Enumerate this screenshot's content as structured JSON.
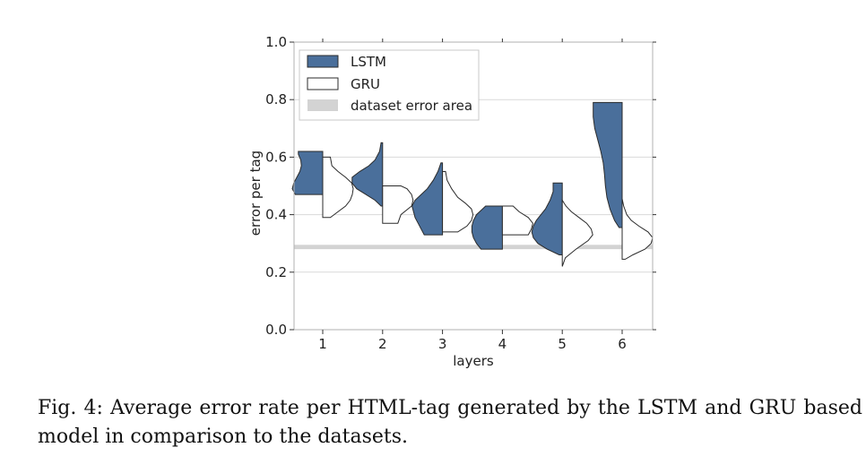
{
  "chart_data": {
    "type": "violin",
    "xlabel": "layers",
    "ylabel": "error per tag",
    "ylim": [
      0.0,
      1.0
    ],
    "yticks": [
      "0.0",
      "0.2",
      "0.4",
      "0.6",
      "0.8",
      "1.0"
    ],
    "categories": [
      "1",
      "2",
      "3",
      "4",
      "5",
      "6"
    ],
    "grid": "horizontal",
    "legend_position": "top-left",
    "reference_band": {
      "name": "dataset error area",
      "range": [
        0.28,
        0.295
      ],
      "color": "#d3d3d3"
    },
    "series": [
      {
        "name": "LSTM",
        "side": "left",
        "color": "#4a6f9b",
        "violins": [
          {
            "min": 0.47,
            "max": 0.62,
            "profile": [
              [
                0.47,
                0.9
              ],
              [
                0.49,
                1.0
              ],
              [
                0.51,
                0.95
              ],
              [
                0.53,
                0.85
              ],
              [
                0.55,
                0.75
              ],
              [
                0.57,
                0.7
              ],
              [
                0.59,
                0.72
              ],
              [
                0.61,
                0.8
              ],
              [
                0.62,
                0.8
              ]
            ]
          },
          {
            "min": 0.43,
            "max": 0.65,
            "profile": [
              [
                0.43,
                0.05
              ],
              [
                0.45,
                0.25
              ],
              [
                0.47,
                0.55
              ],
              [
                0.49,
                0.85
              ],
              [
                0.51,
                1.0
              ],
              [
                0.53,
                1.0
              ],
              [
                0.55,
                0.75
              ],
              [
                0.57,
                0.45
              ],
              [
                0.59,
                0.25
              ],
              [
                0.62,
                0.1
              ],
              [
                0.65,
                0.05
              ]
            ]
          },
          {
            "min": 0.33,
            "max": 0.58,
            "profile": [
              [
                0.33,
                0.6
              ],
              [
                0.35,
                0.7
              ],
              [
                0.37,
                0.8
              ],
              [
                0.39,
                0.9
              ],
              [
                0.41,
                0.95
              ],
              [
                0.43,
                1.0
              ],
              [
                0.45,
                0.9
              ],
              [
                0.47,
                0.7
              ],
              [
                0.49,
                0.5
              ],
              [
                0.52,
                0.3
              ],
              [
                0.55,
                0.15
              ],
              [
                0.58,
                0.05
              ]
            ]
          },
          {
            "min": 0.28,
            "max": 0.43,
            "profile": [
              [
                0.28,
                0.7
              ],
              [
                0.3,
                0.85
              ],
              [
                0.32,
                0.95
              ],
              [
                0.34,
                1.0
              ],
              [
                0.36,
                1.0
              ],
              [
                0.38,
                0.95
              ],
              [
                0.4,
                0.85
              ],
              [
                0.42,
                0.65
              ],
              [
                0.43,
                0.55
              ]
            ]
          },
          {
            "min": 0.26,
            "max": 0.51,
            "profile": [
              [
                0.26,
                0.1
              ],
              [
                0.28,
                0.5
              ],
              [
                0.3,
                0.8
              ],
              [
                0.32,
                0.95
              ],
              [
                0.34,
                1.0
              ],
              [
                0.36,
                0.95
              ],
              [
                0.38,
                0.85
              ],
              [
                0.4,
                0.7
              ],
              [
                0.42,
                0.55
              ],
              [
                0.45,
                0.4
              ],
              [
                0.48,
                0.3
              ],
              [
                0.51,
                0.3
              ]
            ]
          },
          {
            "min": 0.355,
            "max": 0.79,
            "profile": [
              [
                0.355,
                0.1
              ],
              [
                0.38,
                0.25
              ],
              [
                0.42,
                0.4
              ],
              [
                0.46,
                0.5
              ],
              [
                0.5,
                0.55
              ],
              [
                0.54,
                0.58
              ],
              [
                0.58,
                0.62
              ],
              [
                0.62,
                0.7
              ],
              [
                0.66,
                0.8
              ],
              [
                0.7,
                0.9
              ],
              [
                0.74,
                0.95
              ],
              [
                0.79,
                0.95
              ]
            ]
          }
        ]
      },
      {
        "name": "GRU",
        "side": "right",
        "color": "#ffffff",
        "violins": [
          {
            "min": 0.39,
            "max": 0.6,
            "profile": [
              [
                0.39,
                0.25
              ],
              [
                0.41,
                0.5
              ],
              [
                0.43,
                0.75
              ],
              [
                0.45,
                0.9
              ],
              [
                0.47,
                0.97
              ],
              [
                0.49,
                1.0
              ],
              [
                0.51,
                0.95
              ],
              [
                0.53,
                0.75
              ],
              [
                0.55,
                0.5
              ],
              [
                0.57,
                0.3
              ],
              [
                0.6,
                0.25
              ]
            ]
          },
          {
            "min": 0.37,
            "max": 0.5,
            "profile": [
              [
                0.37,
                0.5
              ],
              [
                0.4,
                0.6
              ],
              [
                0.43,
                0.95
              ],
              [
                0.45,
                1.0
              ],
              [
                0.47,
                0.95
              ],
              [
                0.49,
                0.8
              ],
              [
                0.5,
                0.6
              ]
            ]
          },
          {
            "min": 0.34,
            "max": 0.55,
            "profile": [
              [
                0.34,
                0.5
              ],
              [
                0.36,
                0.8
              ],
              [
                0.38,
                0.95
              ],
              [
                0.4,
                1.0
              ],
              [
                0.42,
                0.95
              ],
              [
                0.44,
                0.75
              ],
              [
                0.46,
                0.5
              ],
              [
                0.49,
                0.3
              ],
              [
                0.52,
                0.15
              ],
              [
                0.55,
                0.1
              ]
            ]
          },
          {
            "min": 0.33,
            "max": 0.43,
            "profile": [
              [
                0.33,
                0.85
              ],
              [
                0.35,
                0.95
              ],
              [
                0.37,
                1.0
              ],
              [
                0.39,
                0.85
              ],
              [
                0.41,
                0.55
              ],
              [
                0.43,
                0.35
              ]
            ]
          },
          {
            "min": 0.22,
            "max": 0.45,
            "profile": [
              [
                0.22,
                0.0
              ],
              [
                0.25,
                0.1
              ],
              [
                0.28,
                0.45
              ],
              [
                0.31,
                0.85
              ],
              [
                0.33,
                1.0
              ],
              [
                0.35,
                0.95
              ],
              [
                0.37,
                0.8
              ],
              [
                0.39,
                0.55
              ],
              [
                0.41,
                0.3
              ],
              [
                0.43,
                0.12
              ],
              [
                0.45,
                0.0
              ]
            ]
          },
          {
            "min": 0.245,
            "max": 0.455,
            "profile": [
              [
                0.245,
                0.1
              ],
              [
                0.26,
                0.35
              ],
              [
                0.28,
                0.75
              ],
              [
                0.3,
                0.95
              ],
              [
                0.32,
                1.0
              ],
              [
                0.34,
                0.85
              ],
              [
                0.36,
                0.55
              ],
              [
                0.38,
                0.3
              ],
              [
                0.4,
                0.15
              ],
              [
                0.43,
                0.05
              ],
              [
                0.455,
                0.0
              ]
            ]
          }
        ]
      }
    ]
  },
  "caption": "Fig. 4: Average error rate per HTML-tag generated by the LSTM and GRU based model in comparison to the datasets."
}
